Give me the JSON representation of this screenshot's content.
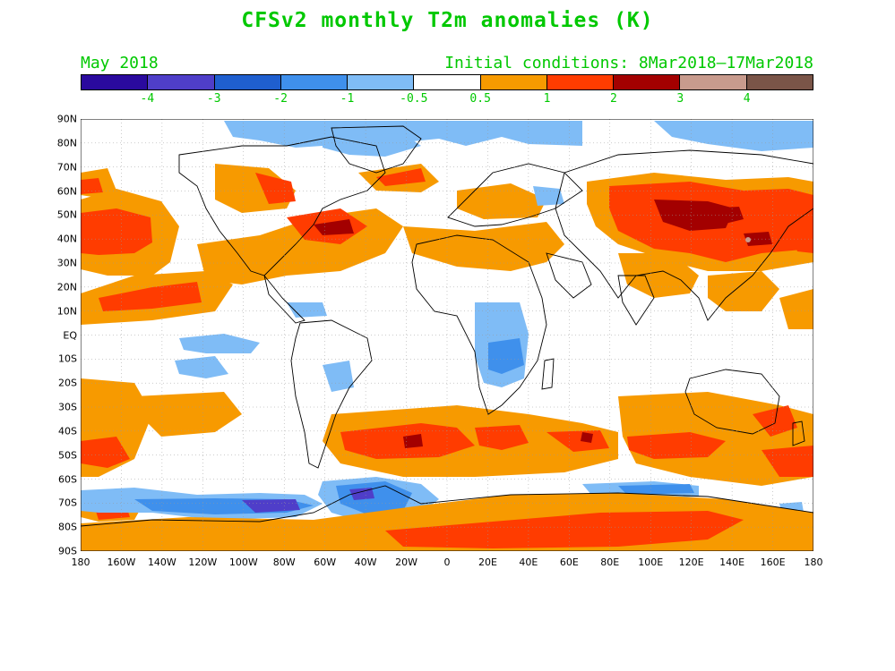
{
  "header": {
    "title": "CFSv2 monthly T2m anomalies (K)",
    "valid_month": "May 2018",
    "initial_conditions": "Initial conditions: 8Mar2018–17Mar2018"
  },
  "colorbar": {
    "colors": [
      "#2a0a9e",
      "#4f3ec9",
      "#1f5fcf",
      "#3f90ec",
      "#7fbcf6",
      "#ffffff",
      "#f79a00",
      "#ff3c00",
      "#a30000",
      "#c89b8d",
      "#7a5548"
    ],
    "tick_labels": [
      "-4",
      "-3",
      "-2",
      "-1",
      "-0.5",
      "0.5",
      "1",
      "2",
      "3",
      "4"
    ]
  },
  "axes": {
    "latitude_labels": [
      "90N",
      "80N",
      "70N",
      "60N",
      "50N",
      "40N",
      "30N",
      "20N",
      "10N",
      "EQ",
      "10S",
      "20S",
      "30S",
      "40S",
      "50S",
      "60S",
      "70S",
      "80S",
      "90S"
    ],
    "longitude_labels": [
      "180",
      "160W",
      "140W",
      "120W",
      "100W",
      "80W",
      "60W",
      "40W",
      "20W",
      "0",
      "20E",
      "40E",
      "60E",
      "80E",
      "100E",
      "120E",
      "140E",
      "160E",
      "180"
    ]
  },
  "legend_colors": {
    "text": "#00c800"
  }
}
